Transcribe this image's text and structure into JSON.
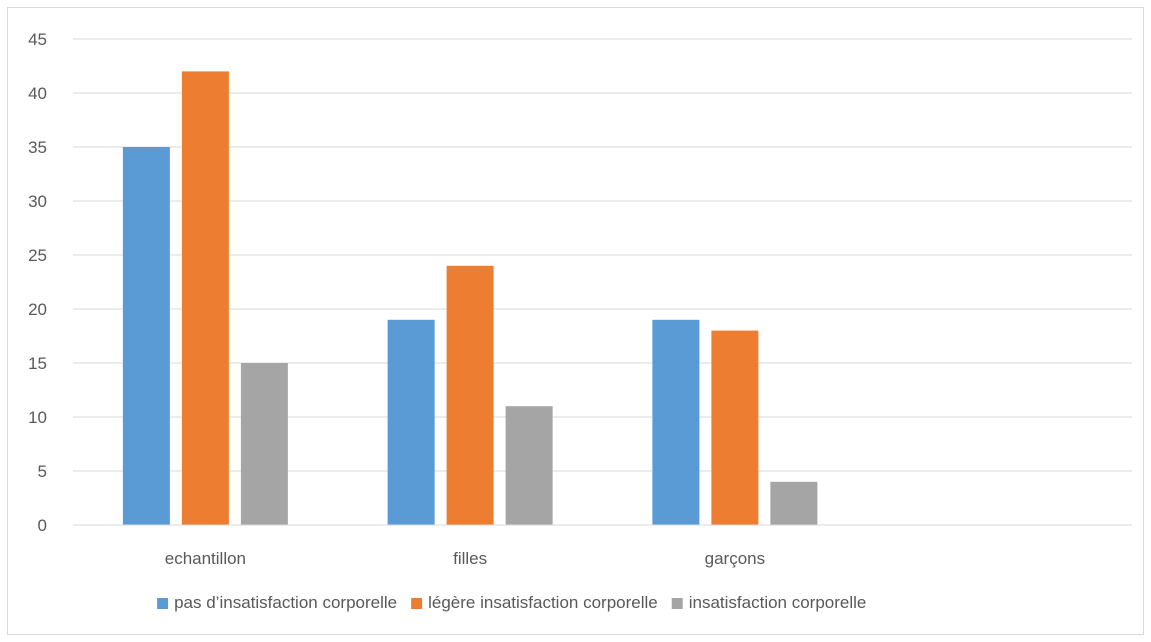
{
  "chart_data": {
    "type": "bar",
    "title": "",
    "xlabel": "",
    "ylabel": "",
    "ylim": [
      0,
      45
    ],
    "yticks": [
      0,
      5,
      10,
      15,
      20,
      25,
      30,
      35,
      40,
      45
    ],
    "grid": true,
    "legend_position": "bottom",
    "categories": [
      "echantillon",
      "filles",
      "garçons",
      ""
    ],
    "series": [
      {
        "name": "pas d’insatisfaction corporelle",
        "color": "#5b9bd5",
        "values": [
          35,
          19,
          19,
          null
        ]
      },
      {
        "name": "légère insatisfaction corporelle",
        "color": "#ed7d31",
        "values": [
          42,
          24,
          18,
          null
        ]
      },
      {
        "name": "insatisfaction corporelle",
        "color": "#a5a5a5",
        "values": [
          15,
          11,
          4,
          null
        ]
      }
    ]
  }
}
